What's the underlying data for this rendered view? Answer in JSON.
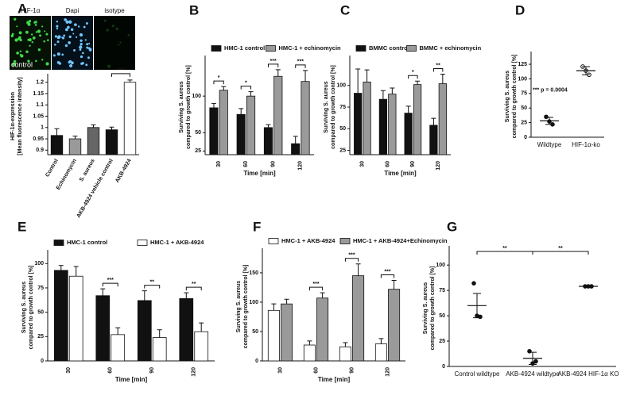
{
  "chart_data": [
    {
      "type": "bar",
      "label": "A",
      "image_labels": [
        "HIF-1α",
        "Dapi",
        "isotype"
      ],
      "image_caption": "control",
      "ylabel": [
        "HIF-1α-expression",
        "[Mean fluorescence intensity]"
      ],
      "categories": [
        "Control",
        "Echinomycin",
        "S. aureus",
        "AKB-4924 vehicle control",
        "AKB-4924"
      ],
      "values": [
        0.965,
        0.95,
        1.0,
        0.99,
        1.2
      ],
      "errors": [
        0.03,
        0.012,
        0.012,
        0.012,
        0.01
      ],
      "colors": [
        "#111111",
        "#9a9a9a",
        "#666666",
        "#111111",
        "#ffffff"
      ],
      "significance": [
        null,
        null,
        null,
        null,
        "***"
      ],
      "ylim": [
        0.88,
        1.22
      ],
      "yticks": [
        0.9,
        0.95,
        1,
        1.05,
        1.1,
        1.15,
        1.2
      ]
    },
    {
      "type": "bar",
      "label": "B",
      "ylabel": [
        "Surviving S. aureus",
        "compared to growth control [%]"
      ],
      "xlabel": "Time [min]",
      "categories": [
        "30",
        "60",
        "90",
        "120"
      ],
      "series": [
        {
          "name": "HMC-1 control",
          "color": "#111111",
          "values": [
            84,
            75,
            57,
            35
          ],
          "errors": [
            6,
            8,
            4,
            10
          ]
        },
        {
          "name": "HMC-1 + echinomycin",
          "color": "#9a9a9a",
          "values": [
            108,
            100,
            127,
            120
          ],
          "errors": [
            5,
            6,
            9,
            15
          ]
        }
      ],
      "significance": [
        "*",
        "*",
        "***",
        "***"
      ],
      "ylim": [
        20,
        150
      ],
      "yticks": [
        25,
        50,
        100
      ]
    },
    {
      "type": "bar",
      "label": "C",
      "ylabel": [
        "Surviving S. aureus",
        "compared to growth control [%]"
      ],
      "xlabel": "Time [min]",
      "categories": [
        "30",
        "60",
        "90",
        "120"
      ],
      "series": [
        {
          "name": "BMMC control",
          "color": "#111111",
          "values": [
            91,
            84,
            68,
            54
          ],
          "errors": [
            28,
            10,
            8,
            8
          ]
        },
        {
          "name": "BMMC + echinomycin",
          "color": "#9a9a9a",
          "values": [
            104,
            90,
            101,
            102
          ],
          "errors": [
            14,
            7,
            4,
            11
          ]
        }
      ],
      "significance": [
        null,
        null,
        "*",
        "**"
      ],
      "ylim": [
        20,
        130
      ],
      "yticks": [
        25,
        50,
        75,
        100
      ]
    },
    {
      "type": "scatter",
      "label": "D",
      "ylabel": [
        "Surviving S. aureus",
        "compared to growth control [%]"
      ],
      "categories": [
        "Wildtype",
        "HIF-1α-ko"
      ],
      "points": [
        [
          35,
          27,
          22
        ],
        [
          121,
          114,
          107
        ]
      ],
      "means": [
        28,
        114
      ],
      "sem": [
        6,
        7
      ],
      "marker_fills": [
        "#111111",
        "#ffffff"
      ],
      "annotation": "*** p = 0.0004",
      "ylim": [
        0,
        140
      ],
      "yticks": [
        0,
        25,
        50,
        75,
        100,
        125
      ]
    },
    {
      "type": "bar",
      "label": "E",
      "ylabel": [
        "Surviving S. aureus",
        "compared to growth control [%]"
      ],
      "xlabel": "Time [min]",
      "categories": [
        "30",
        "60",
        "90",
        "120"
      ],
      "series": [
        {
          "name": "HMC-1 control",
          "color": "#111111",
          "values": [
            93,
            67,
            62,
            64
          ],
          "errors": [
            5,
            7,
            10,
            6
          ]
        },
        {
          "name": "HMC-1 + AKB-4924",
          "color": "#ffffff",
          "values": [
            87,
            27,
            24,
            30
          ],
          "errors": [
            10,
            7,
            8,
            9
          ]
        }
      ],
      "significance": [
        null,
        "***",
        "**",
        "**"
      ],
      "ylim": [
        0,
        110
      ],
      "yticks": [
        0,
        25,
        50,
        75,
        100
      ]
    },
    {
      "type": "bar",
      "label": "F",
      "ylabel": [
        "Surviving S. aureus",
        "compared to growth control [%]"
      ],
      "xlabel": "Time [min]",
      "categories": [
        "30",
        "60",
        "90",
        "120"
      ],
      "series": [
        {
          "name": "HMC-1 + AKB-4924",
          "color": "#ffffff",
          "values": [
            86,
            27,
            24,
            29
          ],
          "errors": [
            11,
            7,
            7,
            9
          ]
        },
        {
          "name": "HMC-1 + AKB-4924+Echinomycin",
          "color": "#9a9a9a",
          "values": [
            97,
            107,
            145,
            122
          ],
          "errors": [
            8,
            9,
            20,
            15
          ]
        }
      ],
      "significance": [
        null,
        "***",
        "***",
        "***"
      ],
      "ylim": [
        0,
        185
      ],
      "yticks": [
        0,
        50,
        100,
        150
      ]
    },
    {
      "type": "scatter",
      "label": "G",
      "ylabel": [
        "Surviving S. aureus",
        "compared to growth control [%]"
      ],
      "categories": [
        "Control wildtype",
        "AKB-4924 wildtype",
        "AKB-4924 HIF-1α KO"
      ],
      "points": [
        [
          82,
          50,
          49
        ],
        [
          15,
          3,
          5
        ],
        [
          79,
          79,
          79
        ]
      ],
      "means": [
        60,
        8,
        79
      ],
      "sem": [
        12,
        6,
        0.5
      ],
      "marker_fills": [
        "#111111",
        "#111111",
        "#111111"
      ],
      "significance": [
        null,
        "**",
        "**"
      ],
      "ylim": [
        0,
        115
      ],
      "yticks": [
        0,
        25,
        50,
        75,
        100
      ]
    }
  ]
}
